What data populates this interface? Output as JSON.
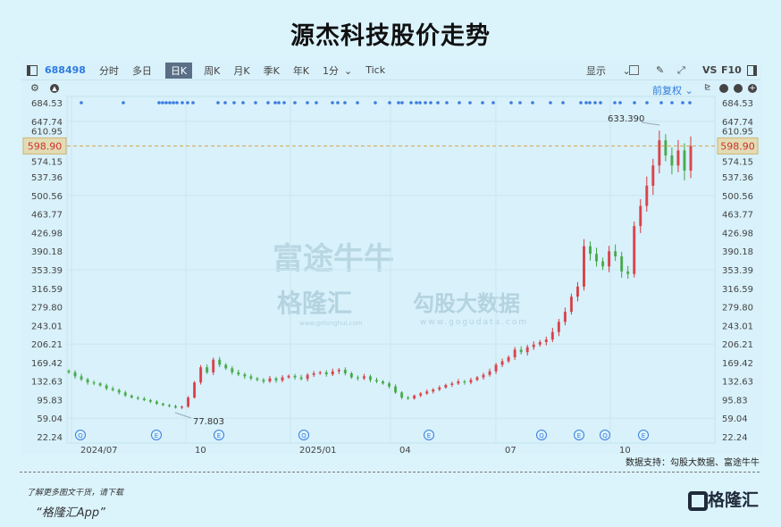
{
  "title": "源杰科技股价走势",
  "toolbar": {
    "code": "688498",
    "periods": [
      "分时",
      "多日",
      "日K",
      "周K",
      "月K",
      "季K",
      "年K",
      "1分",
      "Tick"
    ],
    "active": "日K",
    "display": "显示",
    "vs": "VS",
    "f10": "F10",
    "adjust": "前复权"
  },
  "icons": [
    "sidebar-toggle-icon",
    "settings-icon",
    "up-arrow-icon",
    "chevron-down-icon",
    "square-icon",
    "pen-icon",
    "fullscreen-icon",
    "panel-icon",
    "kline-type-icon",
    "zoom-out-icon",
    "zoom-in-icon"
  ],
  "colors": {
    "up": "#d9363e",
    "down": "#3fa53f",
    "price_line": "#d9a24a",
    "accent": "#2f7be0"
  },
  "chart_data": {
    "type": "candlestick",
    "y_ticks": [
      "684.53",
      "647.74",
      "610.95",
      "574.15",
      "537.36",
      "500.56",
      "463.77",
      "426.98",
      "390.18",
      "353.39",
      "316.59",
      "279.80",
      "243.01",
      "206.21",
      "169.42",
      "132.63",
      "95.83",
      "59.04",
      "22.24"
    ],
    "ylim": [
      22.24,
      684.53
    ],
    "x_ticks": [
      "2024/07",
      "10",
      "2025/01",
      "04",
      "07",
      "10"
    ],
    "current_price": "598.90",
    "high_label": "633.390",
    "low_label": "77.803",
    "events": [
      "Q",
      "E",
      "E",
      "Q",
      "E",
      "Q",
      "E",
      "Q",
      "E"
    ],
    "close": [
      150,
      142,
      136,
      130,
      128,
      124,
      118,
      115,
      110,
      104,
      100,
      98,
      95,
      92,
      88,
      85,
      83,
      80,
      82,
      100,
      130,
      160,
      150,
      175,
      165,
      158,
      150,
      146,
      142,
      138,
      135,
      132,
      138,
      134,
      140,
      143,
      140,
      137,
      145,
      148,
      150,
      146,
      152,
      155,
      148,
      140,
      138,
      142,
      135,
      132,
      128,
      122,
      110,
      100,
      98,
      104,
      108,
      112,
      116,
      120,
      125,
      128,
      132,
      130,
      135,
      140,
      145,
      152,
      165,
      172,
      180,
      195,
      190,
      200,
      205,
      210,
      215,
      230,
      250,
      270,
      300,
      320,
      400,
      385,
      370,
      360,
      390,
      380,
      350,
      345,
      440,
      480,
      520,
      560,
      610,
      580,
      560,
      590,
      550,
      598.9
    ]
  },
  "watermark": {
    "futu": "富途牛牛",
    "glh": "格隆汇",
    "glh_url": "www.gelonghui.com",
    "gogu": "勾股大数据",
    "gogu_url": "www.gogudata.com"
  },
  "source": "数据支持：勾股大数据、富途牛牛",
  "footer": {
    "line1": "了解更多图文干货，请下载",
    "line2": "“格隆汇App”",
    "logo": "格隆汇"
  }
}
